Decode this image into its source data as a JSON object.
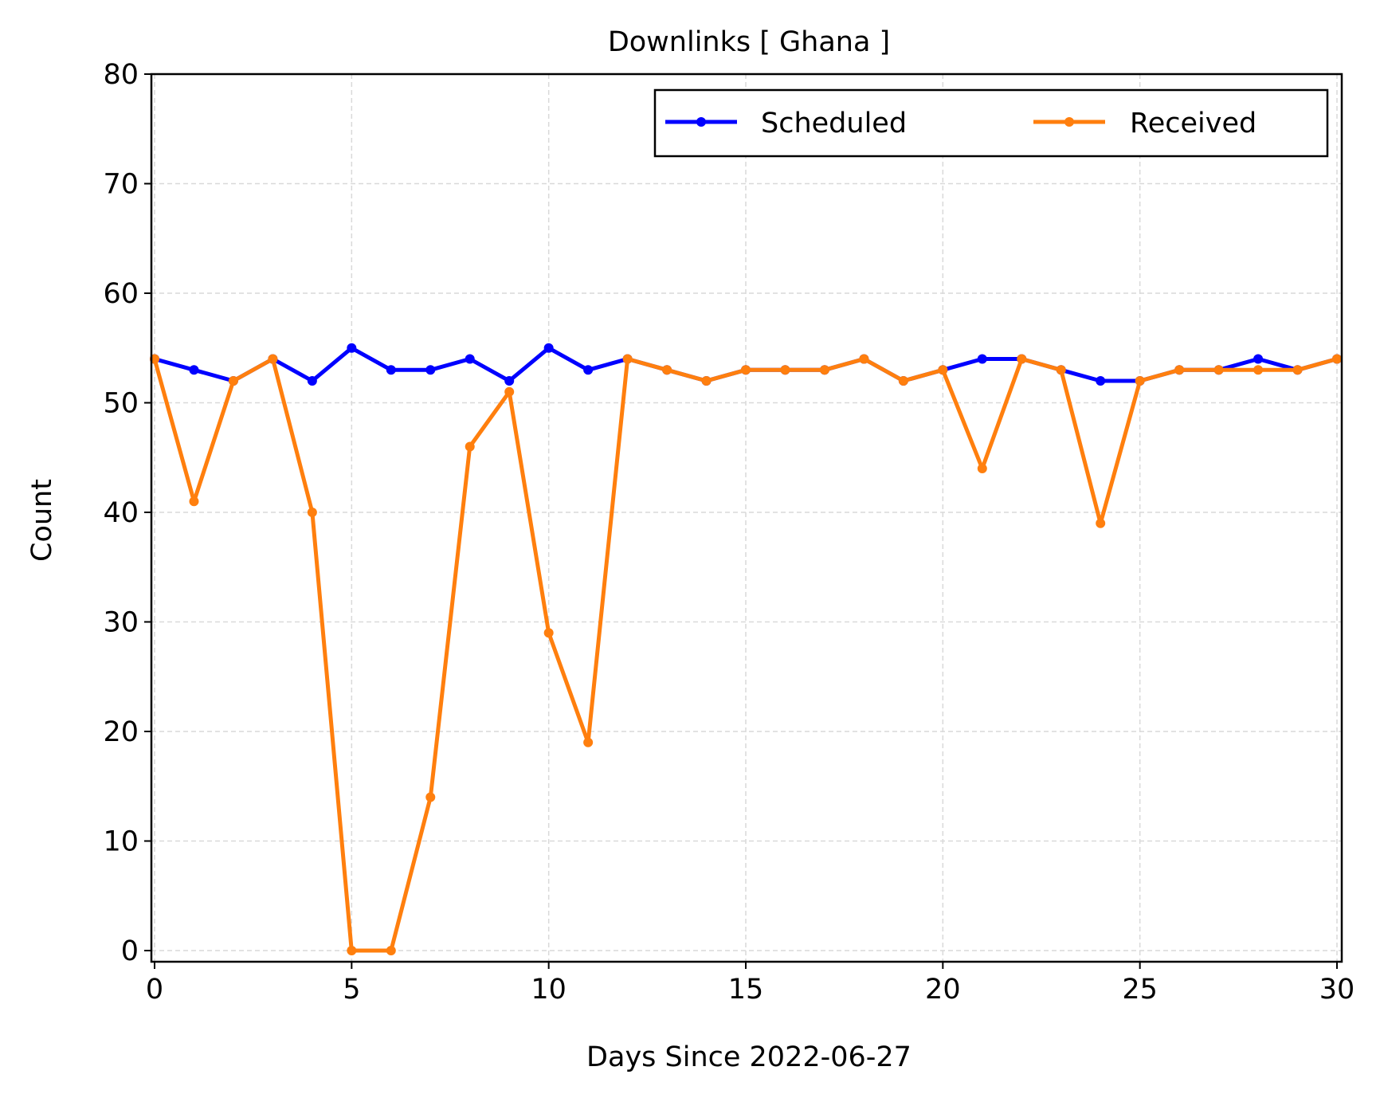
{
  "chart_data": {
    "type": "line",
    "title": "Downlinks [ Ghana ]",
    "xlabel": "Days Since 2022-06-27",
    "ylabel": "Count",
    "xlim": [
      0,
      30
    ],
    "ylim": [
      -1,
      80
    ],
    "xticks": [
      0,
      5,
      10,
      15,
      20,
      25,
      30
    ],
    "yticks": [
      0,
      10,
      20,
      30,
      40,
      50,
      60,
      70,
      80
    ],
    "grid": true,
    "legend_position": "top-right",
    "x": [
      0,
      1,
      2,
      3,
      4,
      5,
      6,
      7,
      8,
      9,
      10,
      11,
      12,
      13,
      14,
      15,
      16,
      17,
      18,
      19,
      20,
      21,
      22,
      23,
      24,
      25,
      26,
      27,
      28,
      29,
      30
    ],
    "series": [
      {
        "name": "Scheduled",
        "color": "#0000ff",
        "values": [
          54,
          53,
          52,
          54,
          52,
          55,
          53,
          53,
          54,
          52,
          55,
          53,
          54,
          53,
          52,
          53,
          53,
          53,
          54,
          52,
          53,
          54,
          54,
          53,
          52,
          52,
          53,
          53,
          54,
          53,
          54
        ]
      },
      {
        "name": "Received",
        "color": "#ff7f0e",
        "values": [
          54,
          41,
          52,
          54,
          40,
          0,
          0,
          14,
          46,
          51,
          29,
          19,
          54,
          53,
          52,
          53,
          53,
          53,
          54,
          52,
          53,
          44,
          54,
          53,
          39,
          52,
          53,
          53,
          53,
          53,
          54
        ]
      }
    ]
  }
}
